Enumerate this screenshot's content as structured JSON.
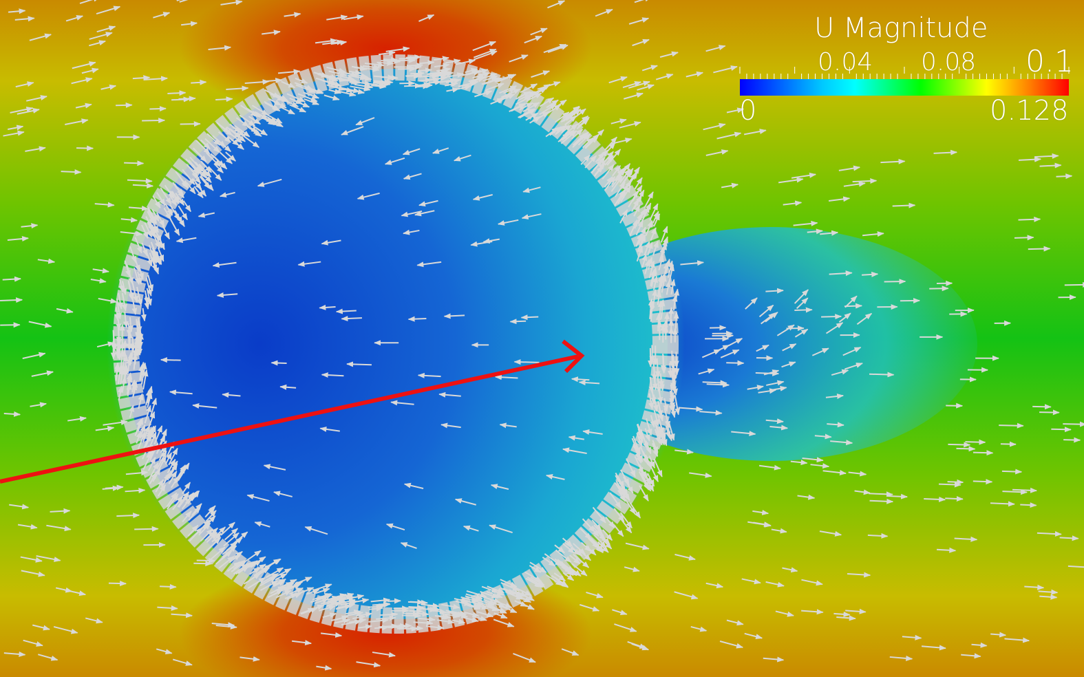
{
  "scene": {
    "description_colors": {
      "wake_low": "#0a3fd0",
      "inside": "#1a66d8",
      "cyan": "#1fc2d0",
      "green": "#14c214",
      "yellow": "#c9c800",
      "orange": "#cc8a00",
      "red": "#d42a00",
      "arrow_glyph": "#d9d9d9",
      "pointer_arrow": "#ee1111"
    },
    "icons": [
      "vector-glyph-icon",
      "red-pointer-arrow-icon"
    ]
  },
  "legend": {
    "title": "U Magnitude",
    "ticks": [
      "0.04",
      "0.08",
      "0.1"
    ],
    "min_label": "0",
    "max_label": "0.128",
    "colors": [
      "#0000ff",
      "#00c8ff",
      "#00ffff",
      "#00ff00",
      "#ffff00",
      "#ff8000",
      "#ff0000"
    ]
  }
}
